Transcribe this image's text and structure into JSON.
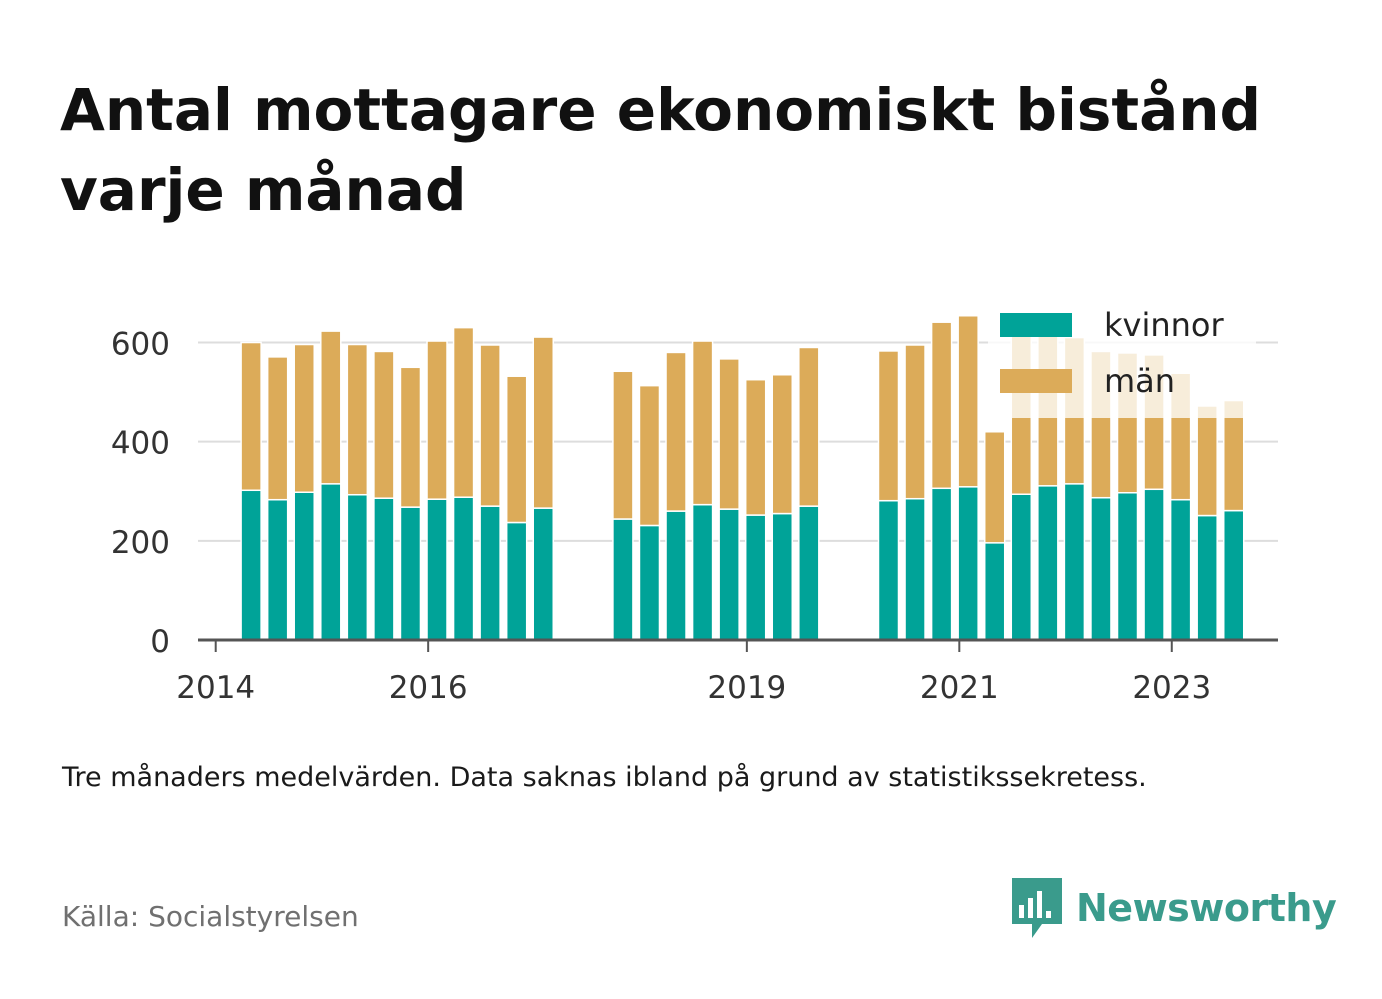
{
  "title": "Antal mottagare ekonomiskt bistånd varje månad",
  "caption": "Tre månaders medelvärden. Data saknas ibland på grund av statistikssekretess.",
  "source": "Källa: Socialstyrelsen",
  "brand": {
    "name": "Newsworthy",
    "logo_icon": "newsworthy-bar-chart-icon"
  },
  "colors": {
    "kvinnor": "#00a398",
    "man": "#dcab59",
    "grid": "#dddddd",
    "axis": "#555555",
    "brand": "#3a9b8c"
  },
  "chart_data": {
    "type": "bar",
    "stacked": true,
    "x": [
      "2014-05",
      "2014-08",
      "2014-11",
      "2015-02",
      "2015-05",
      "2015-08",
      "2015-11",
      "2016-02",
      "2016-05",
      "2016-08",
      "2016-11",
      "2017-02",
      "2017-11",
      "2018-02",
      "2018-05",
      "2018-08",
      "2018-11",
      "2019-02",
      "2019-05",
      "2019-08",
      "2020-05",
      "2020-08",
      "2020-11",
      "2021-02",
      "2021-05",
      "2021-08",
      "2021-11",
      "2022-02",
      "2022-05",
      "2022-08",
      "2022-11",
      "2023-02",
      "2023-05",
      "2023-08"
    ],
    "series": [
      {
        "name": "kvinnor",
        "values": [
          302,
          283,
          298,
          315,
          293,
          286,
          268,
          284,
          288,
          270,
          237,
          266,
          244,
          231,
          260,
          273,
          264,
          252,
          255,
          270,
          281,
          285,
          306,
          309,
          196,
          294,
          311,
          315,
          287,
          297,
          304,
          283,
          251,
          261
        ]
      },
      {
        "name": "män",
        "values": [
          298,
          288,
          298,
          308,
          303,
          296,
          282,
          319,
          342,
          325,
          295,
          345,
          298,
          282,
          320,
          330,
          303,
          273,
          280,
          320,
          302,
          310,
          335,
          345,
          224,
          320,
          305,
          295,
          295,
          282,
          271,
          255,
          221,
          222
        ]
      }
    ],
    "y_ticks": [
      "0",
      "200",
      "400",
      "600"
    ],
    "x_ticks": [
      {
        "label": "2014",
        "date": "2014-01"
      },
      {
        "label": "2016",
        "date": "2016-01"
      },
      {
        "label": "2019",
        "date": "2019-01"
      },
      {
        "label": "2021",
        "date": "2021-01"
      },
      {
        "label": "2023",
        "date": "2023-01"
      }
    ],
    "xlim": [
      "2013-11",
      "2024-01"
    ],
    "ylim": [
      0,
      700
    ],
    "grid": true,
    "legend": {
      "position": "top-right",
      "labels": [
        "kvinnor",
        "män"
      ]
    }
  }
}
